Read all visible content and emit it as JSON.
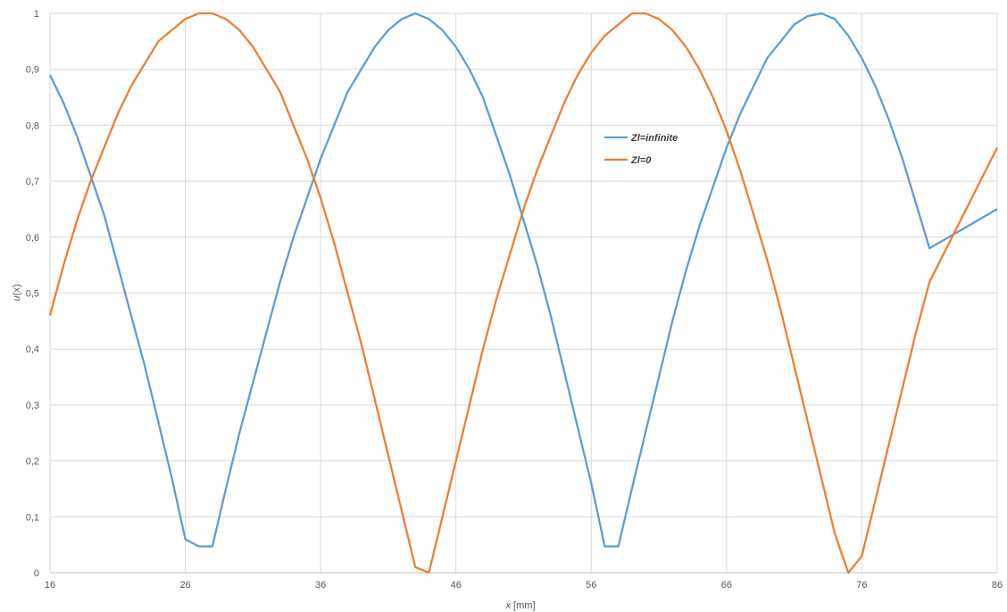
{
  "chart_data": {
    "type": "line",
    "title": "",
    "xlabel_var": "x",
    "xlabel_unit": " [mm]",
    "ylabel_var": "u",
    "ylabel_arg": "(x)",
    "xlim": [
      16,
      86
    ],
    "ylim": [
      0,
      1
    ],
    "x_ticks": [
      16,
      26,
      36,
      46,
      56,
      66,
      76,
      86
    ],
    "y_ticks": [
      0,
      0.1,
      0.2,
      0.3,
      0.4,
      0.5,
      0.6,
      0.7,
      0.8,
      0.9,
      1
    ],
    "x_tick_labels": [
      "16",
      "26",
      "36",
      "46",
      "56",
      "66",
      "76",
      "86"
    ],
    "y_tick_labels": [
      "0",
      "0,1",
      "0,2",
      "0,3",
      "0,4",
      "0,5",
      "0,6",
      "0,7",
      "0,8",
      "0,9",
      "1"
    ],
    "grid": true,
    "legend_position": "inside-top-right",
    "series": [
      {
        "name": "Zl=infinite",
        "color": "#5b9bd5",
        "points": [
          [
            16,
            0.89
          ],
          [
            17,
            0.84
          ],
          [
            18,
            0.78
          ],
          [
            19,
            0.71
          ],
          [
            20,
            0.64
          ],
          [
            21,
            0.55
          ],
          [
            22,
            0.46
          ],
          [
            23,
            0.37
          ],
          [
            24,
            0.27
          ],
          [
            25,
            0.17
          ],
          [
            26,
            0.06
          ],
          [
            27,
            0.047
          ],
          [
            28,
            0.047
          ],
          [
            29,
            0.15
          ],
          [
            30,
            0.25
          ],
          [
            31,
            0.34
          ],
          [
            32,
            0.43
          ],
          [
            33,
            0.52
          ],
          [
            34,
            0.6
          ],
          [
            35,
            0.67
          ],
          [
            36,
            0.74
          ],
          [
            37,
            0.8
          ],
          [
            38,
            0.86
          ],
          [
            39,
            0.9
          ],
          [
            40,
            0.94
          ],
          [
            41,
            0.97
          ],
          [
            42,
            0.99
          ],
          [
            43,
            1
          ],
          [
            44,
            0.99
          ],
          [
            45,
            0.97
          ],
          [
            46,
            0.94
          ],
          [
            47,
            0.9
          ],
          [
            48,
            0.85
          ],
          [
            49,
            0.78
          ],
          [
            50,
            0.71
          ],
          [
            51,
            0.63
          ],
          [
            52,
            0.55
          ],
          [
            53,
            0.46
          ],
          [
            54,
            0.36
          ],
          [
            55,
            0.26
          ],
          [
            56,
            0.16
          ],
          [
            57,
            0.047
          ],
          [
            58,
            0.047
          ],
          [
            59,
            0.15
          ],
          [
            60,
            0.25
          ],
          [
            61,
            0.35
          ],
          [
            62,
            0.45
          ],
          [
            63,
            0.54
          ],
          [
            64,
            0.62
          ],
          [
            65,
            0.69
          ],
          [
            66,
            0.76
          ],
          [
            67,
            0.82
          ],
          [
            68,
            0.87
          ],
          [
            69,
            0.92
          ],
          [
            70,
            0.95
          ],
          [
            71,
            0.98
          ],
          [
            72,
            0.995
          ],
          [
            73,
            1
          ],
          [
            74,
            0.99
          ],
          [
            75,
            0.96
          ],
          [
            76,
            0.92
          ],
          [
            77,
            0.87
          ],
          [
            78,
            0.81
          ],
          [
            79,
            0.74
          ],
          [
            80,
            0.66
          ],
          [
            81,
            0.58
          ],
          [
            86,
            0.65
          ]
        ]
      },
      {
        "name": "Zl=0",
        "color": "#ed7d31",
        "points": [
          [
            16,
            0.46
          ],
          [
            17,
            0.55
          ],
          [
            18,
            0.63
          ],
          [
            19,
            0.7
          ],
          [
            20,
            0.76
          ],
          [
            21,
            0.82
          ],
          [
            22,
            0.87
          ],
          [
            23,
            0.91
          ],
          [
            24,
            0.95
          ],
          [
            25,
            0.97
          ],
          [
            26,
            0.99
          ],
          [
            27,
            1
          ],
          [
            28,
            1
          ],
          [
            29,
            0.99
          ],
          [
            30,
            0.97
          ],
          [
            31,
            0.94
          ],
          [
            32,
            0.9
          ],
          [
            33,
            0.86
          ],
          [
            34,
            0.8
          ],
          [
            35,
            0.74
          ],
          [
            36,
            0.67
          ],
          [
            37,
            0.59
          ],
          [
            38,
            0.5
          ],
          [
            39,
            0.41
          ],
          [
            40,
            0.31
          ],
          [
            41,
            0.21
          ],
          [
            42,
            0.11
          ],
          [
            43,
            0.01
          ],
          [
            44,
            0
          ],
          [
            45,
            0.1
          ],
          [
            46,
            0.2
          ],
          [
            47,
            0.3
          ],
          [
            48,
            0.4
          ],
          [
            49,
            0.49
          ],
          [
            50,
            0.57
          ],
          [
            51,
            0.65
          ],
          [
            52,
            0.72
          ],
          [
            53,
            0.78
          ],
          [
            54,
            0.84
          ],
          [
            55,
            0.89
          ],
          [
            56,
            0.93
          ],
          [
            57,
            0.96
          ],
          [
            58,
            0.98
          ],
          [
            59,
            1
          ],
          [
            60,
            1
          ],
          [
            61,
            0.99
          ],
          [
            62,
            0.97
          ],
          [
            63,
            0.94
          ],
          [
            64,
            0.9
          ],
          [
            65,
            0.85
          ],
          [
            66,
            0.79
          ],
          [
            67,
            0.72
          ],
          [
            68,
            0.64
          ],
          [
            69,
            0.56
          ],
          [
            70,
            0.47
          ],
          [
            71,
            0.37
          ],
          [
            72,
            0.27
          ],
          [
            73,
            0.17
          ],
          [
            74,
            0.07
          ],
          [
            75,
            0
          ],
          [
            76,
            0.03
          ],
          [
            77,
            0.13
          ],
          [
            78,
            0.23
          ],
          [
            79,
            0.33
          ],
          [
            80,
            0.43
          ],
          [
            81,
            0.52
          ],
          [
            86,
            0.76
          ]
        ]
      }
    ]
  }
}
